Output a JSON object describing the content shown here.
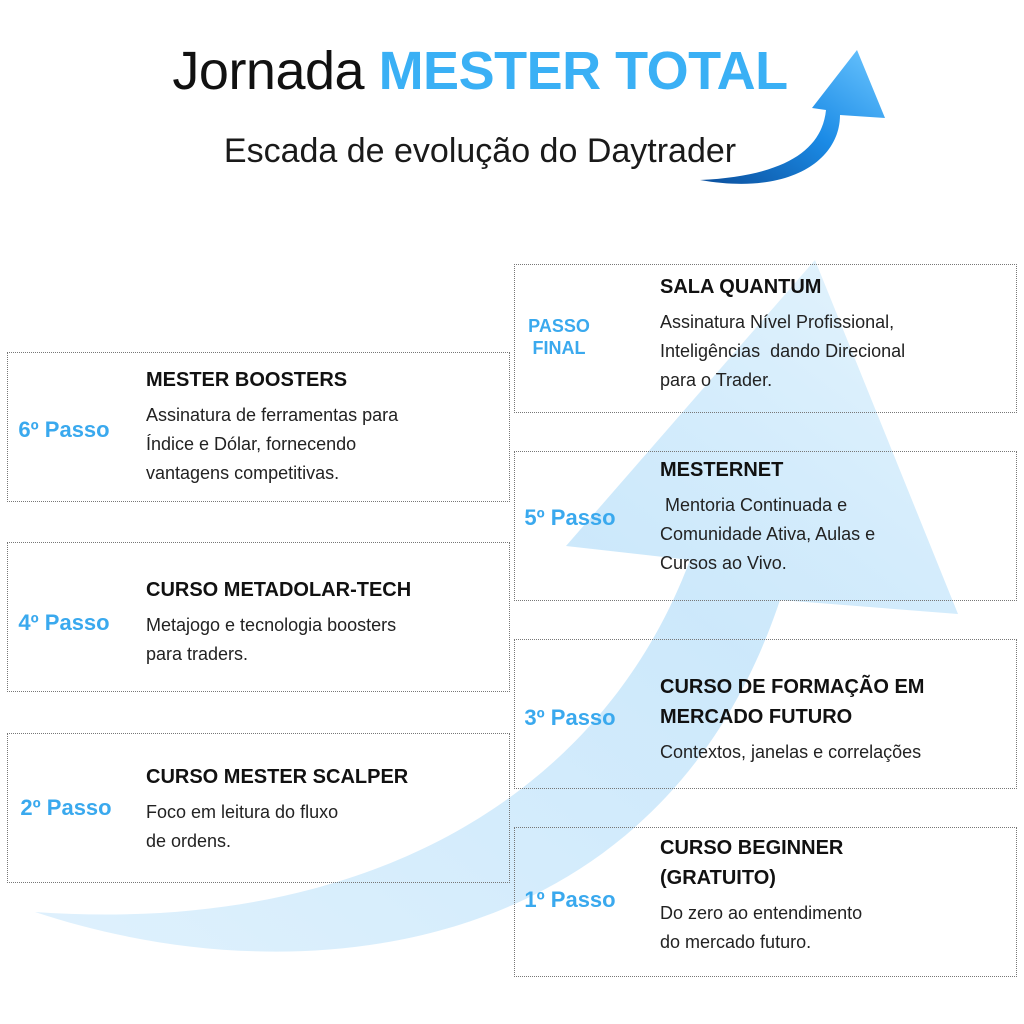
{
  "header": {
    "title_plain": "Jornada",
    "title_accent": "MESTER TOTAL",
    "subtitle": "Escada de evolução do Daytrader"
  },
  "steps": [
    {
      "label": [
        "1º Passo"
      ],
      "title": [
        "CURSO BEGINNER",
        "(GRATUITO)"
      ],
      "description": [
        "Do zero ao entendimento",
        "do mercado futuro."
      ]
    },
    {
      "label": [
        "2º Passo"
      ],
      "title": [
        "CURSO MESTER SCALPER"
      ],
      "description": [
        "Foco em leitura do fluxo",
        "de ordens."
      ]
    },
    {
      "label": [
        "3º Passo"
      ],
      "title": [
        "CURSO DE FORMAÇÃO EM",
        "MERCADO FUTURO"
      ],
      "description": [
        "Contextos, janelas e correlações"
      ]
    },
    {
      "label": [
        "4º Passo"
      ],
      "title": [
        "CURSO METADOLAR-TECH"
      ],
      "description": [
        "Metajogo e tecnologia boosters",
        "para traders."
      ]
    },
    {
      "label": [
        "5º Passo"
      ],
      "title": [
        "MESTERNET"
      ],
      "description": [
        " Mentoria Continuada e",
        "Comunidade Ativa, Aulas e",
        "Cursos ao Vivo."
      ]
    },
    {
      "label": [
        "6º Passo"
      ],
      "title": [
        "MESTER BOOSTERS"
      ],
      "description": [
        "Assinatura de ferramentas para",
        "Índice e Dólar, fornecendo",
        "vantagens competitivas."
      ]
    },
    {
      "label": [
        "PASSO",
        "FINAL"
      ],
      "title": [
        "SALA QUANTUM"
      ],
      "description": [
        "Assinatura Nível Profissional,",
        "Inteligências  dando Direcional",
        "para o Trader."
      ]
    }
  ]
}
